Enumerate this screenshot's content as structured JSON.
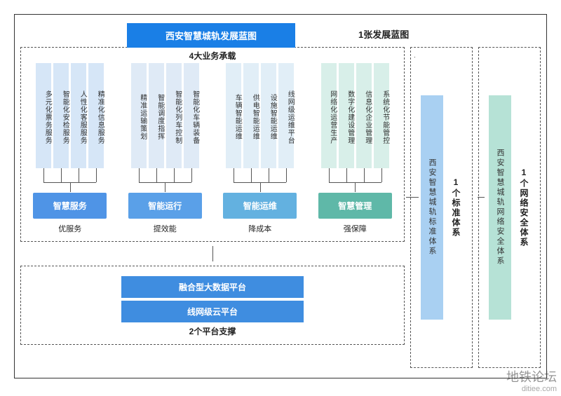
{
  "title": "西安智慧城轨发展蓝图",
  "blueprint_label": "1张发展蓝图",
  "business": {
    "title": "4大业务承载",
    "groups": [
      {
        "pill": "智慧服务",
        "pill_color": "#4f94e6",
        "caption": "优服务",
        "bar_color": "#d6e6f7",
        "items": [
          "多元化票务服务",
          "智能化安检服务",
          "人性化客服服务",
          "精准化信息服务"
        ]
      },
      {
        "pill": "智能运行",
        "pill_color": "#5aa0e8",
        "caption": "提效能",
        "bar_color": "#dfeaf6",
        "items": [
          "精准运输策划",
          "智能调度指挥",
          "智能化列车控制",
          "智能化车辆装备"
        ]
      },
      {
        "pill": "智能运维",
        "pill_color": "#63b1e0",
        "caption": "降成本",
        "bar_color": "#e1eef7",
        "items": [
          "车辆智能运维",
          "供电智能运维",
          "设施智能运维",
          "线网级运维平台"
        ]
      },
      {
        "pill": "智慧管理",
        "pill_color": "#5fb8a8",
        "caption": "强保障",
        "bar_color": "#d8efe9",
        "items": [
          "网络化运营生产",
          "数字化建设管理",
          "信息化企业管理",
          "系统化节能管控"
        ]
      }
    ]
  },
  "platform": {
    "bars": [
      {
        "label": "融合型大数据平台",
        "color": "#3f8de0"
      },
      {
        "label": "线网级云平台",
        "color": "#3f8de0"
      }
    ],
    "title": "2个平台支撑"
  },
  "side_standard": {
    "label": "1个标准体系",
    "pillar": "西安智慧城轨标准体系",
    "pillar_color": "#a9d0f2"
  },
  "side_security": {
    "label": "1个网络安全体系",
    "pillar": "西安智慧城轨网络安全体系",
    "pillar_color": "#b6e2d6"
  },
  "watermark": {
    "main": "地铁论坛",
    "sub": "ditiee.com"
  },
  "colors": {
    "title_bg": "#1a7fe6",
    "border": "#333333",
    "background": "#ffffff"
  }
}
